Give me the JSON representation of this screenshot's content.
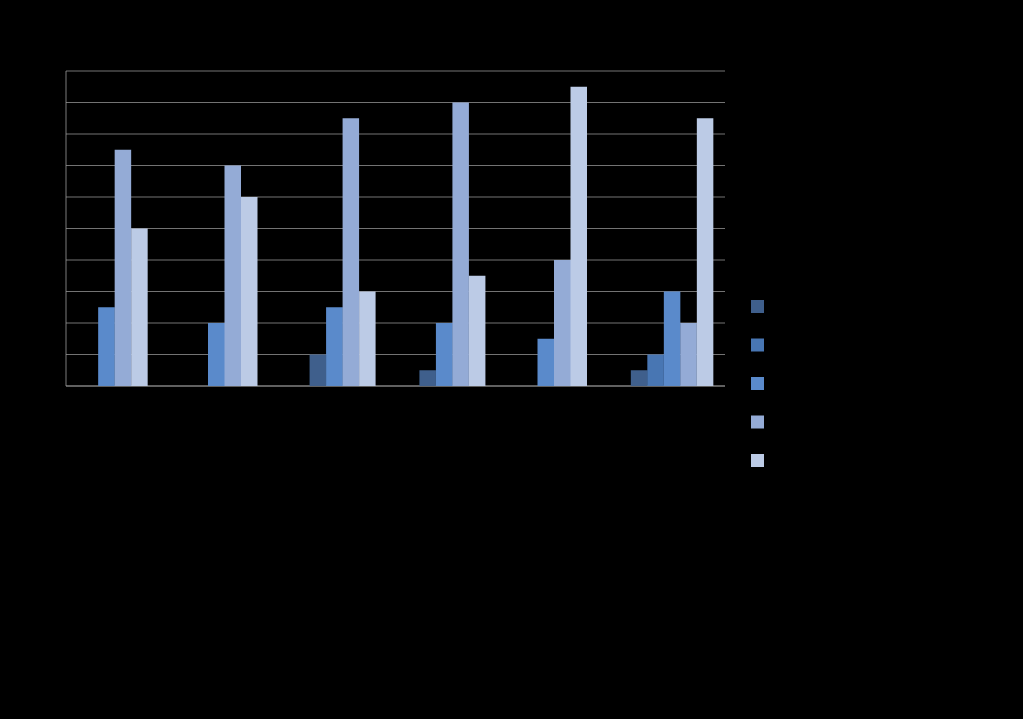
{
  "chart_data": {
    "type": "bar",
    "title": "",
    "xlabel": "",
    "ylabel": "",
    "ylim": [
      0,
      20
    ],
    "y_gridline_step": 2,
    "grid": true,
    "legend_position": "right",
    "categories": [
      "",
      "",
      "",
      "",
      "",
      ""
    ],
    "series": [
      {
        "color": "#3f5f8c",
        "values": [
          0,
          0,
          2,
          1,
          0,
          1
        ]
      },
      {
        "color": "#4876b3",
        "values": [
          0,
          0,
          0,
          0,
          0,
          2
        ]
      },
      {
        "color": "#5a8acb",
        "values": [
          5,
          4,
          5,
          4,
          3,
          6
        ]
      },
      {
        "color": "#94abd6",
        "values": [
          15,
          14,
          17,
          18,
          8,
          4
        ]
      },
      {
        "color": "#bccbe6",
        "values": [
          10,
          12,
          6,
          7,
          19,
          17
        ]
      }
    ],
    "colors": {
      "background": "#000000",
      "gridline": "#9a9a9a"
    }
  }
}
